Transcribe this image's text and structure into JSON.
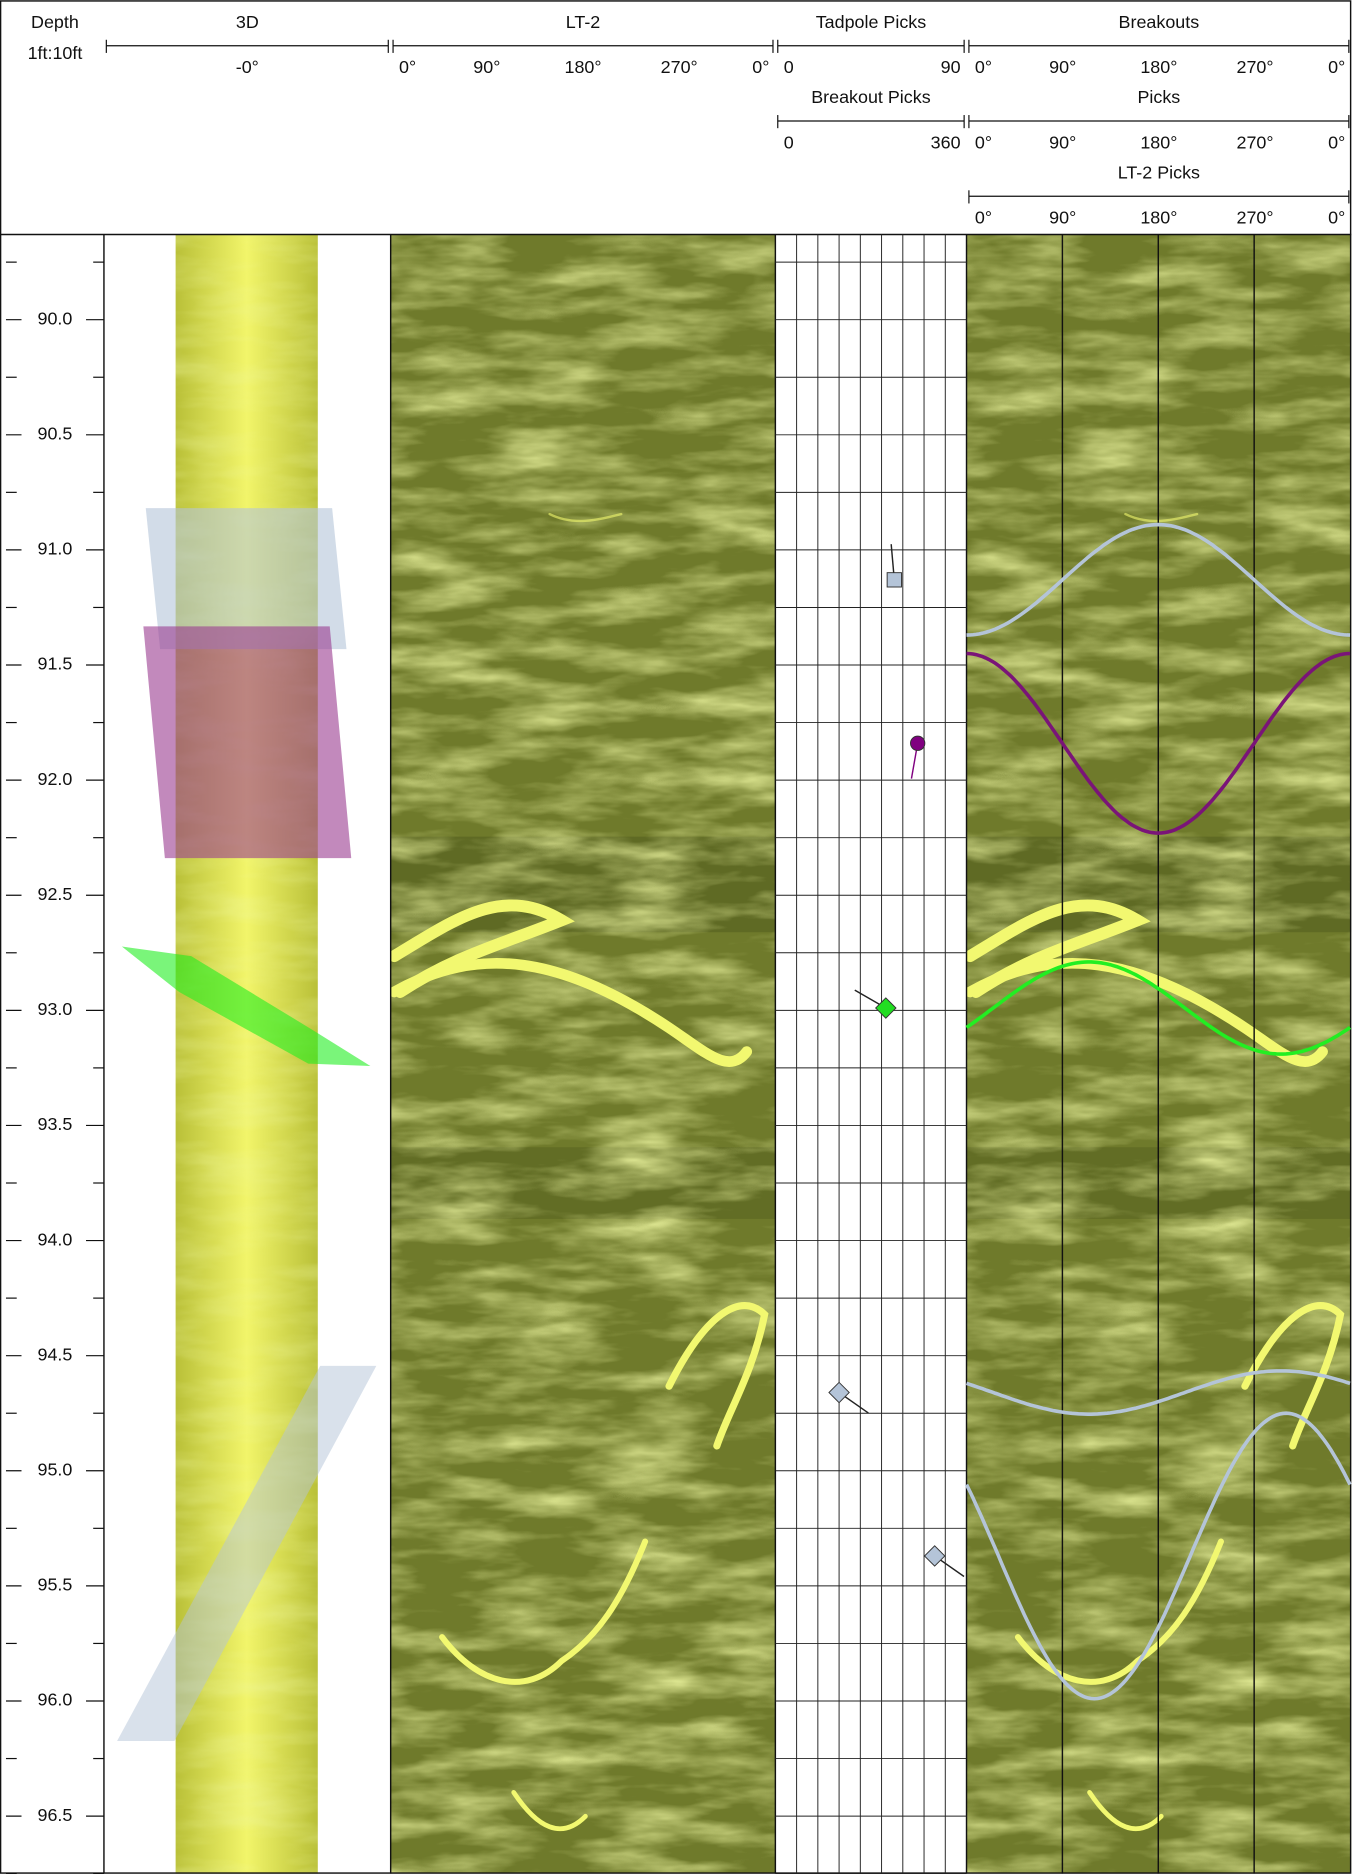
{
  "depth_track": {
    "title": "Depth",
    "scale": "1ft:10ft",
    "ylim": [
      89.63,
      96.75
    ],
    "yticks": [
      {
        "value": 90,
        "label": "90.0"
      },
      {
        "value": 90.5,
        "label": "90.5"
      },
      {
        "value": 91,
        "label": "91.0"
      },
      {
        "value": 91.5,
        "label": "91.5"
      },
      {
        "value": 92,
        "label": "92.0"
      },
      {
        "value": 92.5,
        "label": "92.5"
      },
      {
        "value": 93,
        "label": "93.0"
      },
      {
        "value": 93.5,
        "label": "93.5"
      },
      {
        "value": 94,
        "label": "94.0"
      },
      {
        "value": 94.5,
        "label": "94.5"
      },
      {
        "value": 95,
        "label": "95.0"
      },
      {
        "value": 95.5,
        "label": "95.5"
      },
      {
        "value": 96,
        "label": "96.0"
      },
      {
        "value": 96.5,
        "label": "96.5"
      }
    ],
    "minor_yticks": [
      89.75,
      90.25,
      90.75,
      91.25,
      91.75,
      92.25,
      92.75,
      93.25,
      93.75,
      94.25,
      94.75,
      95.25,
      95.75,
      96.25,
      96.75
    ]
  },
  "tracks": [
    {
      "scales": [
        {
          "title": "3D",
          "labels": [
            "-0°"
          ]
        }
      ]
    },
    {
      "scales": [
        {
          "title": "LT-2",
          "labels": [
            "0°",
            "90°",
            "180°",
            "270°",
            "0°"
          ]
        }
      ]
    },
    {
      "scales": [
        {
          "title": "Tadpole Picks",
          "labels": [
            "0",
            "90"
          ]
        },
        {
          "title": "Breakout Picks",
          "labels": [
            "0",
            "360"
          ]
        }
      ]
    },
    {
      "scales": [
        {
          "title": "Breakouts",
          "labels": [
            "0°",
            "90°",
            "180°",
            "270°",
            "0°"
          ]
        },
        {
          "title": "Picks",
          "labels": [
            "0°",
            "90°",
            "180°",
            "270°",
            "0°"
          ]
        },
        {
          "title": "LT-2 Picks",
          "labels": [
            "0°",
            "90°",
            "180°",
            "270°",
            "0°"
          ]
        }
      ]
    }
  ],
  "tadpoles": {
    "dip_lim": [
      0,
      90
    ],
    "dip_grid": [
      10,
      20,
      30,
      40,
      50,
      60,
      70,
      80
    ],
    "picks": [
      {
        "depth": 91.13,
        "dip": 56,
        "azimuth": 355,
        "color": "#b4c4d8",
        "shape": "square"
      },
      {
        "depth": 91.84,
        "dip": 67,
        "azimuth": 190,
        "color": "#800080",
        "shape": "circle"
      },
      {
        "depth": 92.99,
        "dip": 52,
        "azimuth": 300,
        "color": "#22dd22",
        "shape": "diamond"
      },
      {
        "depth": 94.66,
        "dip": 30,
        "azimuth": 125,
        "color": "#b4c4d8",
        "shape": "diamond"
      },
      {
        "depth": 95.37,
        "dip": 75,
        "azimuth": 125,
        "color": "#b4c4d8",
        "shape": "diamond"
      }
    ]
  },
  "breakouts": {
    "azimuth_lim": [
      0,
      360
    ],
    "azimuth_grid": [
      90,
      180,
      270
    ],
    "sinusoids": [
      {
        "depth": 91.13,
        "amplitude": 0.24,
        "azimuth": 0,
        "color": "#b4c4d8"
      },
      {
        "depth": 91.84,
        "amplitude": 0.39,
        "azimuth": 180,
        "color": "#7a1478"
      },
      {
        "depth": 92.99,
        "amplitude": 0.2,
        "azimuth": 295,
        "color": "#22ee22"
      },
      {
        "depth": 94.66,
        "amplitude": 0.094,
        "azimuth": 115,
        "color": "#b4c4d8"
      },
      {
        "depth": 95.37,
        "amplitude": 0.62,
        "azimuth": 120,
        "color": "#b4c4d8"
      }
    ]
  }
}
